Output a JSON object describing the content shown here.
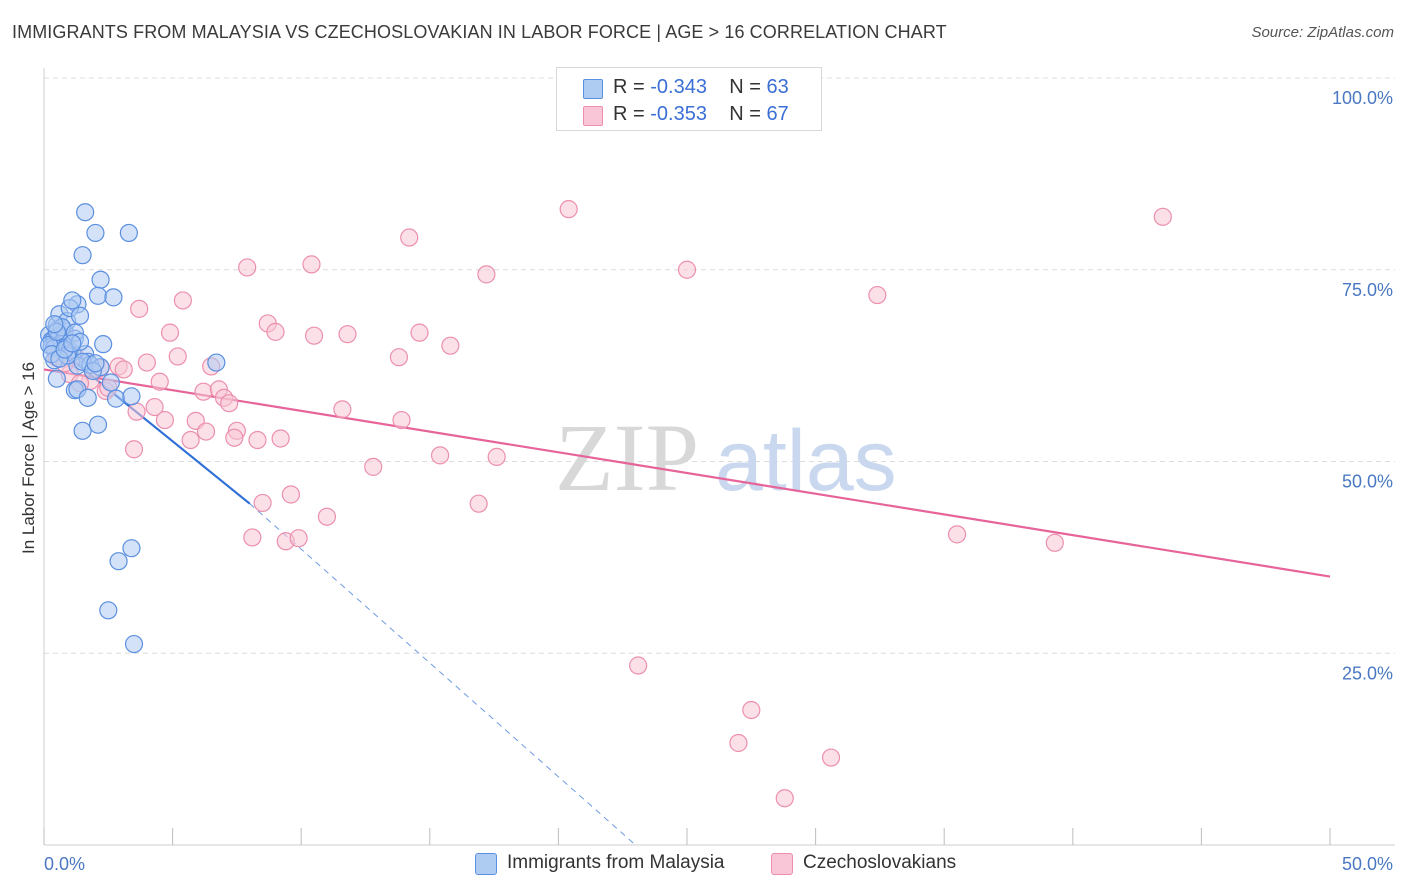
{
  "title": "IMMIGRANTS FROM MALAYSIA VS CZECHOSLOVAKIAN IN LABOR FORCE | AGE > 16 CORRELATION CHART",
  "source": "Source: ZipAtlas.com",
  "watermark": {
    "zip": "ZIP",
    "atlas": "atlas"
  },
  "legend": {
    "series1": {
      "r_label": "R = ",
      "r_value": "-0.343",
      "n_label": "N = ",
      "n_value": "63"
    },
    "series2": {
      "r_label": "R = ",
      "r_value": "-0.353",
      "n_label": "N = ",
      "n_value": "67"
    }
  },
  "bottom_legend": {
    "series1": "Immigrants from Malaysia",
    "series2": "Czechoslovakians"
  },
  "colors": {
    "blue_fill": "#aecbf2",
    "blue_stroke": "#5b8fe0",
    "blue_line": "#2f6fd6",
    "pink_fill": "#f8c6d6",
    "pink_stroke": "#ec8fae",
    "pink_line": "#e6649a",
    "grid": "#dcdcdc",
    "axis_label": "#4a78c2"
  },
  "chart_data": {
    "type": "scatter",
    "title": "IMMIGRANTS FROM MALAYSIA VS CZECHOSLOVAKIAN IN LABOR FORCE | AGE > 16 CORRELATION CHART",
    "xlabel": "",
    "ylabel": "In Labor Force | Age > 16",
    "xlim": [
      0,
      50
    ],
    "ylim": [
      0,
      100
    ],
    "x_tick_labels": [
      "0.0%",
      "50.0%"
    ],
    "y_tick_labels": [
      {
        "value": 100,
        "label": "100.0%"
      },
      {
        "value": 75,
        "label": "75.0%"
      },
      {
        "value": 50,
        "label": "50.0%"
      },
      {
        "value": 25,
        "label": "25.0%"
      }
    ],
    "series": [
      {
        "name": "Immigrants from Malaysia",
        "color": "blue",
        "trend": {
          "x": [
            0.0,
            8.0
          ],
          "y": [
            66.2,
            44.5
          ],
          "extended_dashed_to": [
            23.0,
            0.0
          ]
        },
        "points": [
          [
            0.2,
            66.5
          ],
          [
            0.3,
            65.8
          ],
          [
            0.4,
            66.0
          ],
          [
            0.5,
            67.2
          ],
          [
            0.3,
            65.0
          ],
          [
            0.6,
            66.4
          ],
          [
            0.7,
            65.5
          ],
          [
            0.8,
            66.2
          ],
          [
            0.4,
            64.8
          ],
          [
            0.9,
            65.0
          ],
          [
            1.0,
            64.5
          ],
          [
            1.1,
            64.2
          ],
          [
            0.5,
            67.8
          ],
          [
            0.8,
            67.0
          ],
          [
            1.2,
            66.0
          ],
          [
            0.6,
            69.2
          ],
          [
            0.9,
            68.3
          ],
          [
            1.3,
            70.5
          ],
          [
            1.0,
            70.0
          ],
          [
            1.1,
            71.0
          ],
          [
            1.4,
            69.0
          ],
          [
            1.6,
            64.0
          ],
          [
            1.7,
            63.0
          ],
          [
            1.3,
            62.5
          ],
          [
            1.8,
            62.6
          ],
          [
            2.3,
            65.3
          ],
          [
            2.2,
            62.3
          ],
          [
            0.5,
            60.8
          ],
          [
            1.2,
            59.3
          ],
          [
            1.3,
            59.4
          ],
          [
            1.7,
            58.3
          ],
          [
            2.6,
            60.3
          ],
          [
            2.8,
            58.2
          ],
          [
            3.4,
            58.5
          ],
          [
            1.5,
            54.0
          ],
          [
            2.1,
            54.8
          ],
          [
            1.6,
            82.5
          ],
          [
            2.0,
            79.8
          ],
          [
            3.3,
            79.8
          ],
          [
            1.5,
            76.9
          ],
          [
            2.2,
            73.7
          ],
          [
            2.1,
            71.6
          ],
          [
            2.7,
            71.4
          ],
          [
            6.7,
            62.9
          ],
          [
            3.4,
            38.7
          ],
          [
            2.9,
            37.0
          ],
          [
            2.5,
            30.6
          ],
          [
            3.5,
            26.2
          ],
          [
            0.4,
            63.2
          ],
          [
            1.5,
            63.0
          ],
          [
            0.9,
            63.8
          ],
          [
            0.2,
            65.2
          ],
          [
            0.7,
            67.5
          ],
          [
            1.2,
            66.8
          ],
          [
            0.3,
            64.0
          ],
          [
            0.6,
            63.4
          ],
          [
            1.9,
            61.8
          ],
          [
            2.0,
            62.8
          ],
          [
            1.4,
            65.6
          ],
          [
            0.8,
            64.6
          ],
          [
            0.5,
            66.9
          ],
          [
            1.1,
            65.4
          ],
          [
            0.4,
            67.9
          ]
        ]
      },
      {
        "name": "Czechoslovakians",
        "color": "pink",
        "trend": {
          "x": [
            0.0,
            50.0
          ],
          "y": [
            62.0,
            35.0
          ]
        },
        "points": [
          [
            0.5,
            63.5
          ],
          [
            1.2,
            63.8
          ],
          [
            1.8,
            60.5
          ],
          [
            2.2,
            62.2
          ],
          [
            2.4,
            59.2
          ],
          [
            2.9,
            62.4
          ],
          [
            3.1,
            62.0
          ],
          [
            3.6,
            56.5
          ],
          [
            3.7,
            69.9
          ],
          [
            4.0,
            62.9
          ],
          [
            4.3,
            57.1
          ],
          [
            4.5,
            60.4
          ],
          [
            4.7,
            55.4
          ],
          [
            4.9,
            66.8
          ],
          [
            5.2,
            63.7
          ],
          [
            5.4,
            71.0
          ],
          [
            5.7,
            52.8
          ],
          [
            5.9,
            55.3
          ],
          [
            6.2,
            59.1
          ],
          [
            6.3,
            53.9
          ],
          [
            6.8,
            59.4
          ],
          [
            7.0,
            58.3
          ],
          [
            7.2,
            57.6
          ],
          [
            7.5,
            54.0
          ],
          [
            7.9,
            75.3
          ],
          [
            8.1,
            40.1
          ],
          [
            8.3,
            52.8
          ],
          [
            8.5,
            44.6
          ],
          [
            8.7,
            68.0
          ],
          [
            9.0,
            66.9
          ],
          [
            9.2,
            53.0
          ],
          [
            9.4,
            39.6
          ],
          [
            9.6,
            45.7
          ],
          [
            9.9,
            40.0
          ],
          [
            10.4,
            75.7
          ],
          [
            10.5,
            66.4
          ],
          [
            11.0,
            42.8
          ],
          [
            11.6,
            56.8
          ],
          [
            11.8,
            66.6
          ],
          [
            12.8,
            49.3
          ],
          [
            13.8,
            63.6
          ],
          [
            13.9,
            55.4
          ],
          [
            14.2,
            79.2
          ],
          [
            14.6,
            66.8
          ],
          [
            15.4,
            50.8
          ],
          [
            15.8,
            65.1
          ],
          [
            16.9,
            44.5
          ],
          [
            17.2,
            74.4
          ],
          [
            17.6,
            50.6
          ],
          [
            20.4,
            82.9
          ],
          [
            23.1,
            23.4
          ],
          [
            25.0,
            75.0
          ],
          [
            27.0,
            13.3
          ],
          [
            27.5,
            17.6
          ],
          [
            28.8,
            6.1
          ],
          [
            30.6,
            11.4
          ],
          [
            32.4,
            71.7
          ],
          [
            35.5,
            40.5
          ],
          [
            39.3,
            39.4
          ],
          [
            43.5,
            81.9
          ],
          [
            1.0,
            61.4
          ],
          [
            2.5,
            59.6
          ],
          [
            3.5,
            51.6
          ],
          [
            6.5,
            62.4
          ],
          [
            7.4,
            53.1
          ],
          [
            0.8,
            62.8
          ],
          [
            1.4,
            60.2
          ]
        ]
      }
    ],
    "legend_position": "top-center",
    "grid": true
  }
}
